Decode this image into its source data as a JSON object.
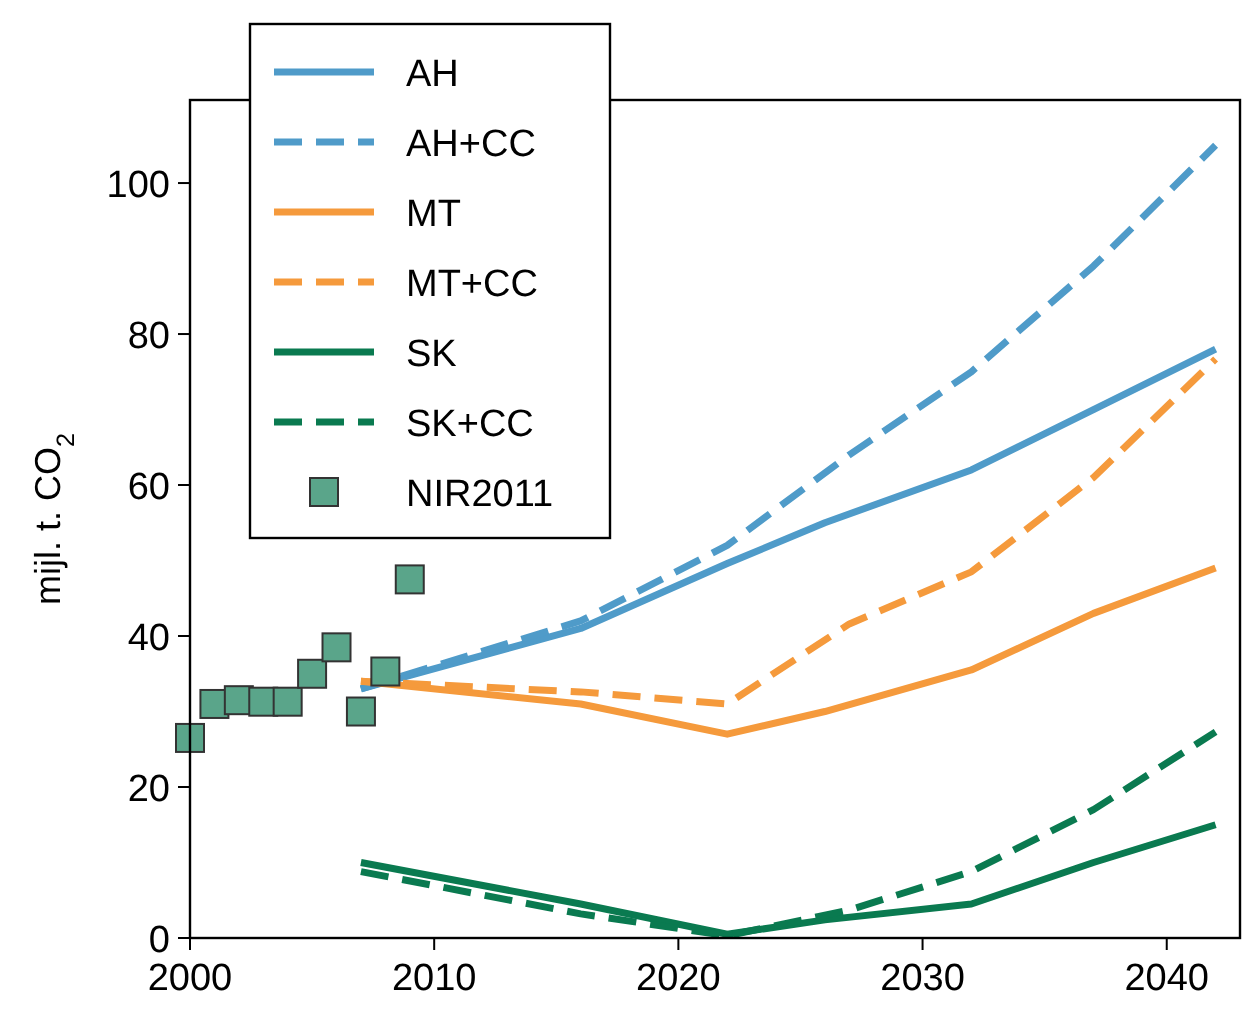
{
  "chart_data": {
    "type": "line",
    "ylabel": "mijl. t. CO$_{2}$",
    "xlim": [
      2000,
      2043
    ],
    "xticks": [
      2000,
      2010,
      2020,
      2030,
      2040
    ],
    "ylim": [
      0,
      111
    ],
    "yticks": [
      0,
      20,
      40,
      60,
      80,
      100
    ],
    "legend": "top left",
    "grid": false,
    "series": [
      {
        "name": "AH",
        "color": "#4f9bc9",
        "line_style": "solid",
        "x": [
          2007,
          2016,
          2022,
          2026,
          2032,
          2037,
          2042
        ],
        "values": [
          33,
          41,
          49.6,
          55,
          62,
          70,
          78
        ]
      },
      {
        "name": "AH+CC",
        "color": "#4f9bc9",
        "line_style": "dashed",
        "x": [
          2007,
          2016,
          2022,
          2027,
          2032,
          2037,
          2042
        ],
        "values": [
          33,
          42,
          52,
          64,
          75,
          89,
          105
        ]
      },
      {
        "name": "MT",
        "color": "#f59a3c",
        "line_style": "solid",
        "x": [
          2007,
          2016,
          2022,
          2026,
          2032,
          2037,
          2042
        ],
        "values": [
          34,
          31,
          27,
          30,
          35.5,
          43,
          49
        ]
      },
      {
        "name": "MT+CC",
        "color": "#f59a3c",
        "line_style": "dashed",
        "x": [
          2007,
          2016,
          2022,
          2027,
          2032,
          2037,
          2042
        ],
        "values": [
          34,
          32.6,
          31,
          41.6,
          48.5,
          61,
          76.7
        ]
      },
      {
        "name": "SK",
        "color": "#0a7a50",
        "line_style": "solid",
        "x": [
          2007,
          2016,
          2022,
          2026,
          2032,
          2037,
          2042
        ],
        "values": [
          10,
          4.5,
          0.5,
          2.4,
          4.5,
          10,
          15
        ]
      },
      {
        "name": "SK+CC",
        "color": "#0a7a50",
        "line_style": "dashed",
        "x": [
          2007,
          2016,
          2022,
          2027,
          2032,
          2037,
          2042
        ],
        "values": [
          8.8,
          3.2,
          0.3,
          3.7,
          8.8,
          17,
          27.3
        ]
      },
      {
        "name": "NIR2011",
        "type": "scatter",
        "marker": "square",
        "color": "#5aa58a",
        "x": [
          2000,
          2001,
          2002,
          2003,
          2004,
          2005,
          2006,
          2007,
          2008,
          2009
        ],
        "values": [
          26.5,
          31,
          31.5,
          31.3,
          31.3,
          35,
          38.5,
          30,
          35.3,
          47.5
        ]
      }
    ]
  }
}
